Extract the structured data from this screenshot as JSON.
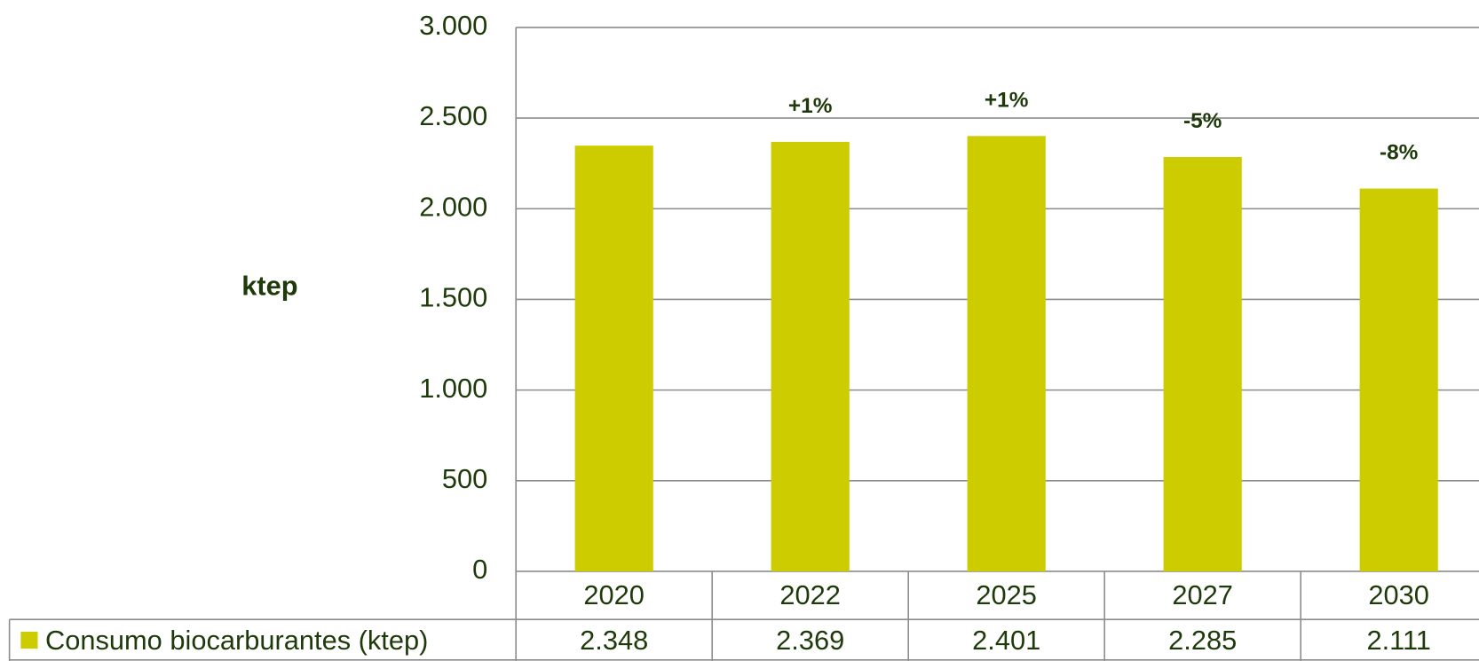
{
  "chart_data": {
    "type": "bar",
    "y_axis_label": "ktep",
    "categories": [
      "2020",
      "2022",
      "2025",
      "2027",
      "2030"
    ],
    "series": [
      {
        "name": "Consumo biocarburantes (ktep)",
        "color": "#cccc00",
        "values": [
          2348,
          2369,
          2401,
          2285,
          2111
        ],
        "value_labels": [
          "2.348",
          "2.369",
          "2.401",
          "2.285",
          "2.111"
        ]
      }
    ],
    "annotations": [
      null,
      "+1%",
      "+1%",
      "-5%",
      "-8%"
    ],
    "ylim": [
      0,
      3000
    ],
    "yticks": [
      0,
      500,
      {
        "value": 1000,
        "label": "1.000"
      },
      {
        "value": 1500,
        "label": "1.500"
      },
      {
        "value": 2000,
        "label": "2.000"
      },
      {
        "value": 2500,
        "label": "2.500"
      },
      {
        "value": 3000,
        "label": "3.000"
      }
    ],
    "grid": true
  }
}
